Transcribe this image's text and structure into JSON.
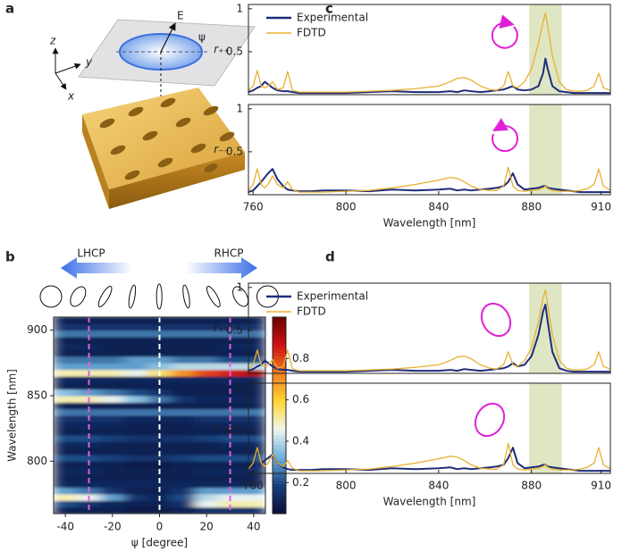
{
  "chart_data": [
    {
      "type": "illustration",
      "panel_label": "a",
      "annotations": [
        "z",
        "y",
        "x",
        "E",
        "ψ"
      ]
    },
    {
      "type": "heatmap",
      "panel_label": "b",
      "labels": [
        "LHCP",
        "RHCP"
      ],
      "xlabel": "ψ [degree]",
      "ylabel": "Wavelength [nm]",
      "xlim": [
        -45,
        45
      ],
      "xticks": [
        -40,
        -20,
        0,
        20,
        40
      ],
      "ylim": [
        760,
        910
      ],
      "yticks": [
        800,
        850,
        900
      ],
      "x_bins": [
        -45,
        -35,
        -25,
        -15,
        -5,
        5,
        15,
        25,
        35,
        45
      ],
      "y_bins": [
        760,
        765,
        770,
        775,
        780,
        785,
        790,
        795,
        800,
        805,
        810,
        815,
        820,
        825,
        830,
        835,
        840,
        845,
        850,
        855,
        860,
        865,
        870,
        875,
        880,
        885,
        890,
        895,
        900,
        905,
        910
      ],
      "z": [
        [
          0.1,
          0.1,
          0.1,
          0.08,
          0.08,
          0.1,
          0.15,
          0.15,
          0.15
        ],
        [
          0.2,
          0.15,
          0.12,
          0.1,
          0.1,
          0.15,
          0.45,
          0.5,
          0.5
        ],
        [
          0.5,
          0.45,
          0.3,
          0.15,
          0.12,
          0.2,
          0.4,
          0.45,
          0.45
        ],
        [
          0.3,
          0.25,
          0.15,
          0.1,
          0.1,
          0.15,
          0.3,
          0.3,
          0.3
        ],
        [
          0.12,
          0.12,
          0.12,
          0.12,
          0.12,
          0.12,
          0.12,
          0.12,
          0.12
        ],
        [
          0.1,
          0.1,
          0.1,
          0.1,
          0.1,
          0.1,
          0.1,
          0.1,
          0.1
        ],
        [
          0.12,
          0.12,
          0.1,
          0.1,
          0.1,
          0.1,
          0.12,
          0.12,
          0.12
        ],
        [
          0.1,
          0.1,
          0.1,
          0.08,
          0.08,
          0.1,
          0.1,
          0.1,
          0.1
        ],
        [
          0.2,
          0.2,
          0.18,
          0.15,
          0.15,
          0.18,
          0.2,
          0.2,
          0.2
        ],
        [
          0.1,
          0.1,
          0.1,
          0.1,
          0.1,
          0.1,
          0.1,
          0.1,
          0.1
        ],
        [
          0.12,
          0.12,
          0.1,
          0.1,
          0.1,
          0.1,
          0.1,
          0.12,
          0.12
        ],
        [
          0.2,
          0.2,
          0.18,
          0.15,
          0.15,
          0.15,
          0.18,
          0.2,
          0.2
        ],
        [
          0.1,
          0.1,
          0.1,
          0.1,
          0.1,
          0.1,
          0.1,
          0.1,
          0.1
        ],
        [
          0.12,
          0.12,
          0.12,
          0.1,
          0.1,
          0.1,
          0.12,
          0.12,
          0.12
        ],
        [
          0.15,
          0.15,
          0.15,
          0.12,
          0.12,
          0.12,
          0.15,
          0.15,
          0.15
        ],
        [
          0.25,
          0.25,
          0.25,
          0.25,
          0.25,
          0.25,
          0.25,
          0.25,
          0.25
        ],
        [
          0.1,
          0.1,
          0.1,
          0.1,
          0.1,
          0.1,
          0.1,
          0.1,
          0.1
        ],
        [
          0.5,
          0.5,
          0.45,
          0.35,
          0.25,
          0.15,
          0.12,
          0.12,
          0.12
        ],
        [
          0.35,
          0.3,
          0.25,
          0.2,
          0.15,
          0.1,
          0.1,
          0.1,
          0.1
        ],
        [
          0.1,
          0.1,
          0.1,
          0.1,
          0.1,
          0.1,
          0.1,
          0.1,
          0.1
        ],
        [
          0.12,
          0.12,
          0.12,
          0.12,
          0.12,
          0.12,
          0.12,
          0.12,
          0.12
        ],
        [
          0.5,
          0.5,
          0.5,
          0.45,
          0.55,
          0.7,
          0.8,
          0.85,
          0.9
        ],
        [
          0.3,
          0.3,
          0.3,
          0.3,
          0.35,
          0.4,
          0.4,
          0.4,
          0.4
        ],
        [
          0.25,
          0.25,
          0.25,
          0.3,
          0.3,
          0.25,
          0.25,
          0.2,
          0.2
        ],
        [
          0.1,
          0.1,
          0.1,
          0.1,
          0.1,
          0.1,
          0.1,
          0.1,
          0.1
        ],
        [
          0.12,
          0.12,
          0.1,
          0.1,
          0.1,
          0.1,
          0.1,
          0.12,
          0.12
        ],
        [
          0.1,
          0.1,
          0.1,
          0.1,
          0.1,
          0.1,
          0.1,
          0.1,
          0.1
        ],
        [
          0.25,
          0.25,
          0.25,
          0.25,
          0.25,
          0.25,
          0.25,
          0.25,
          0.25
        ],
        [
          0.15,
          0.15,
          0.15,
          0.15,
          0.15,
          0.15,
          0.15,
          0.15,
          0.15
        ],
        [
          0.1,
          0.1,
          0.1,
          0.1,
          0.1,
          0.1,
          0.1,
          0.1,
          0.1
        ]
      ],
      "zlim": [
        0.05,
        1
      ],
      "colorbar_ticks": [
        0.2,
        0.4,
        0.6,
        0.8
      ],
      "colormap": [
        "#0b0f3a",
        "#163f7c",
        "#6fb0db",
        "#eef6f0",
        "#ffd530",
        "#f08020",
        "#d01010",
        "#6a0000"
      ],
      "vlines": [
        {
          "x": -30,
          "color": "#e35ee3"
        },
        {
          "x": 0,
          "color": "#ffffff"
        },
        {
          "x": 30,
          "color": "#e35ee3"
        }
      ]
    },
    {
      "type": "line-panels",
      "panel_label": "c",
      "xlabel": "Wavelength [nm]",
      "xlim": [
        758,
        914
      ],
      "xticks": [
        760,
        800,
        840,
        880,
        910
      ],
      "shade": [
        879,
        893
      ],
      "shade_color": "#dfe6c4",
      "x": [
        758,
        760,
        761.8,
        763.5,
        765,
        766.5,
        768.4,
        770.5,
        773,
        774.9,
        777,
        780,
        785,
        790,
        800,
        810,
        820,
        830,
        840,
        845,
        848,
        851,
        854,
        858,
        862,
        865,
        868,
        870,
        872,
        874,
        877,
        880,
        883,
        885,
        886,
        887,
        889,
        892,
        895,
        898,
        901,
        904,
        907,
        909,
        911,
        914
      ],
      "subplots": [
        {
          "ylabel": "r₊₊",
          "ylim": [
            0,
            1.05
          ],
          "yticks": [
            0.5,
            1
          ],
          "legend": true,
          "series": [
            {
              "name": "Experimental",
              "color": "#1f2d7a",
              "values": [
                0.03,
                0.05,
                0.08,
                0.1,
                0.15,
                0.12,
                0.08,
                0.05,
                0.04,
                0.04,
                0.03,
                0.02,
                0.02,
                0.02,
                0.02,
                0.03,
                0.04,
                0.03,
                0.03,
                0.04,
                0.03,
                0.05,
                0.04,
                0.03,
                0.04,
                0.05,
                0.06,
                0.08,
                0.1,
                0.06,
                0.05,
                0.06,
                0.1,
                0.25,
                0.42,
                0.3,
                0.1,
                0.04,
                0.03,
                0.02,
                0.02,
                0.02,
                0.02,
                0.02,
                0.02,
                0.02
              ]
            },
            {
              "name": "FDTD",
              "color": "#e8b030",
              "values": [
                0.05,
                0.1,
                0.28,
                0.1,
                0.08,
                0.1,
                0.15,
                0.06,
                0.08,
                0.27,
                0.05,
                0.03,
                0.03,
                0.03,
                0.03,
                0.04,
                0.05,
                0.07,
                0.1,
                0.15,
                0.19,
                0.2,
                0.17,
                0.1,
                0.06,
                0.05,
                0.1,
                0.27,
                0.1,
                0.08,
                0.15,
                0.3,
                0.6,
                0.85,
                0.95,
                0.8,
                0.45,
                0.15,
                0.06,
                0.04,
                0.04,
                0.05,
                0.1,
                0.25,
                0.08,
                0.05
              ]
            }
          ]
        },
        {
          "ylabel": "r₋₋",
          "ylim": [
            0,
            1.05
          ],
          "yticks": [
            0.5,
            1
          ],
          "legend": false,
          "series": [
            {
              "color": "#1f2d7a",
              "values": [
                0.03,
                0.05,
                0.1,
                0.15,
                0.2,
                0.25,
                0.3,
                0.18,
                0.1,
                0.06,
                0.05,
                0.04,
                0.04,
                0.05,
                0.05,
                0.04,
                0.06,
                0.05,
                0.06,
                0.07,
                0.05,
                0.06,
                0.05,
                0.06,
                0.07,
                0.08,
                0.1,
                0.15,
                0.25,
                0.12,
                0.06,
                0.07,
                0.08,
                0.1,
                0.1,
                0.08,
                0.07,
                0.06,
                0.05,
                0.04,
                0.03,
                0.03,
                0.03,
                0.03,
                0.03,
                0.03
              ]
            },
            {
              "color": "#e8b030",
              "values": [
                0.05,
                0.12,
                0.3,
                0.12,
                0.08,
                0.12,
                0.22,
                0.12,
                0.08,
                0.15,
                0.06,
                0.03,
                0.03,
                0.03,
                0.04,
                0.05,
                0.08,
                0.12,
                0.17,
                0.2,
                0.19,
                0.15,
                0.1,
                0.06,
                0.05,
                0.05,
                0.1,
                0.32,
                0.1,
                0.05,
                0.04,
                0.05,
                0.06,
                0.08,
                0.1,
                0.07,
                0.05,
                0.04,
                0.04,
                0.04,
                0.05,
                0.07,
                0.12,
                0.3,
                0.1,
                0.05
              ]
            }
          ]
        }
      ]
    },
    {
      "type": "line-panels",
      "panel_label": "d",
      "xlabel": "Wavelength [nm]",
      "xlim": [
        758,
        914
      ],
      "xticks": [
        760,
        800,
        840,
        880,
        910
      ],
      "shade": [
        879,
        893
      ],
      "shade_color": "#dfe6c4",
      "x": [
        758,
        760,
        761.8,
        763.5,
        765,
        766.5,
        768.4,
        770.5,
        773,
        774.9,
        777,
        780,
        785,
        790,
        800,
        810,
        820,
        830,
        840,
        845,
        848,
        851,
        854,
        858,
        862,
        865,
        868,
        870,
        872,
        874,
        877,
        880,
        883,
        885,
        886,
        887,
        889,
        892,
        895,
        898,
        901,
        904,
        907,
        909,
        911,
        914
      ],
      "subplots": [
        {
          "ylabel": "r₊₊",
          "ylim": [
            0,
            1.05
          ],
          "yticks": [
            0.5,
            1
          ],
          "legend": true,
          "series": [
            {
              "name": "Experimental",
              "color": "#1f2d7a",
              "values": [
                0.03,
                0.05,
                0.08,
                0.1,
                0.15,
                0.12,
                0.08,
                0.05,
                0.04,
                0.04,
                0.03,
                0.02,
                0.02,
                0.02,
                0.02,
                0.03,
                0.04,
                0.03,
                0.03,
                0.04,
                0.03,
                0.05,
                0.04,
                0.03,
                0.04,
                0.05,
                0.06,
                0.08,
                0.12,
                0.08,
                0.1,
                0.2,
                0.45,
                0.72,
                0.8,
                0.6,
                0.25,
                0.06,
                0.03,
                0.02,
                0.02,
                0.02,
                0.02,
                0.02,
                0.02,
                0.02
              ]
            },
            {
              "name": "FDTD",
              "color": "#e8b030",
              "values": [
                0.05,
                0.1,
                0.27,
                0.1,
                0.08,
                0.1,
                0.16,
                0.06,
                0.08,
                0.27,
                0.05,
                0.03,
                0.03,
                0.03,
                0.03,
                0.04,
                0.05,
                0.07,
                0.1,
                0.15,
                0.19,
                0.2,
                0.17,
                0.1,
                0.06,
                0.05,
                0.1,
                0.25,
                0.1,
                0.08,
                0.15,
                0.3,
                0.6,
                0.88,
                0.97,
                0.8,
                0.45,
                0.15,
                0.06,
                0.04,
                0.04,
                0.05,
                0.1,
                0.25,
                0.08,
                0.05
              ]
            }
          ]
        },
        {
          "ylabel": "r₋₋",
          "ylim": [
            0,
            1.05
          ],
          "yticks": [
            0.5,
            1
          ],
          "legend": false,
          "series": [
            {
              "color": "#1f2d7a",
              "values": [
                0.03,
                0.05,
                0.08,
                0.12,
                0.15,
                0.18,
                0.22,
                0.12,
                0.07,
                0.05,
                0.04,
                0.04,
                0.04,
                0.05,
                0.05,
                0.04,
                0.06,
                0.05,
                0.06,
                0.07,
                0.05,
                0.06,
                0.05,
                0.06,
                0.07,
                0.08,
                0.1,
                0.18,
                0.3,
                0.12,
                0.06,
                0.07,
                0.08,
                0.1,
                0.1,
                0.08,
                0.07,
                0.06,
                0.05,
                0.04,
                0.03,
                0.03,
                0.03,
                0.03,
                0.03,
                0.03
              ]
            },
            {
              "color": "#e8b030",
              "values": [
                0.05,
                0.12,
                0.3,
                0.12,
                0.08,
                0.12,
                0.22,
                0.12,
                0.08,
                0.15,
                0.06,
                0.03,
                0.03,
                0.03,
                0.04,
                0.05,
                0.08,
                0.12,
                0.17,
                0.2,
                0.19,
                0.15,
                0.1,
                0.06,
                0.05,
                0.05,
                0.1,
                0.35,
                0.1,
                0.05,
                0.04,
                0.05,
                0.06,
                0.08,
                0.1,
                0.07,
                0.05,
                0.04,
                0.04,
                0.04,
                0.05,
                0.07,
                0.12,
                0.3,
                0.1,
                0.05
              ]
            }
          ]
        }
      ]
    }
  ]
}
